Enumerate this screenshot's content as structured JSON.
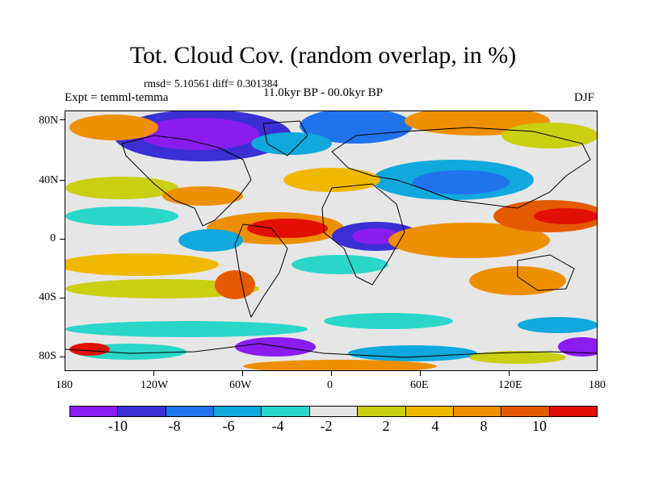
{
  "title": "Tot. Cloud Cov. (random overlap, in %)",
  "stats": "rmsd= 5.10561 diff= 0.301384",
  "period": "11.0kyr BP - 00.0kyr BP",
  "experiment": "Expt = temml-temma",
  "season": "DJF",
  "lat_labels": [
    "80N",
    "40N",
    "0",
    "40S",
    "80S"
  ],
  "lon_labels": [
    "180",
    "120W",
    "60W",
    "0",
    "60E",
    "120E",
    "180"
  ],
  "colorbar": {
    "colors": [
      "#8a1cf0",
      "#3b2fd6",
      "#1f74ec",
      "#10a8dd",
      "#2ad6c8",
      "#e6e6e6",
      "#c9cf11",
      "#f1b800",
      "#ee8f00",
      "#e55a00",
      "#e20f05"
    ],
    "labels": [
      "-10",
      "-8",
      "-6",
      "-4",
      "-2",
      "2",
      "4",
      "8",
      "10"
    ]
  },
  "map_palette": {
    "neutral": "#e6e6e6",
    "coast": "#000000"
  }
}
